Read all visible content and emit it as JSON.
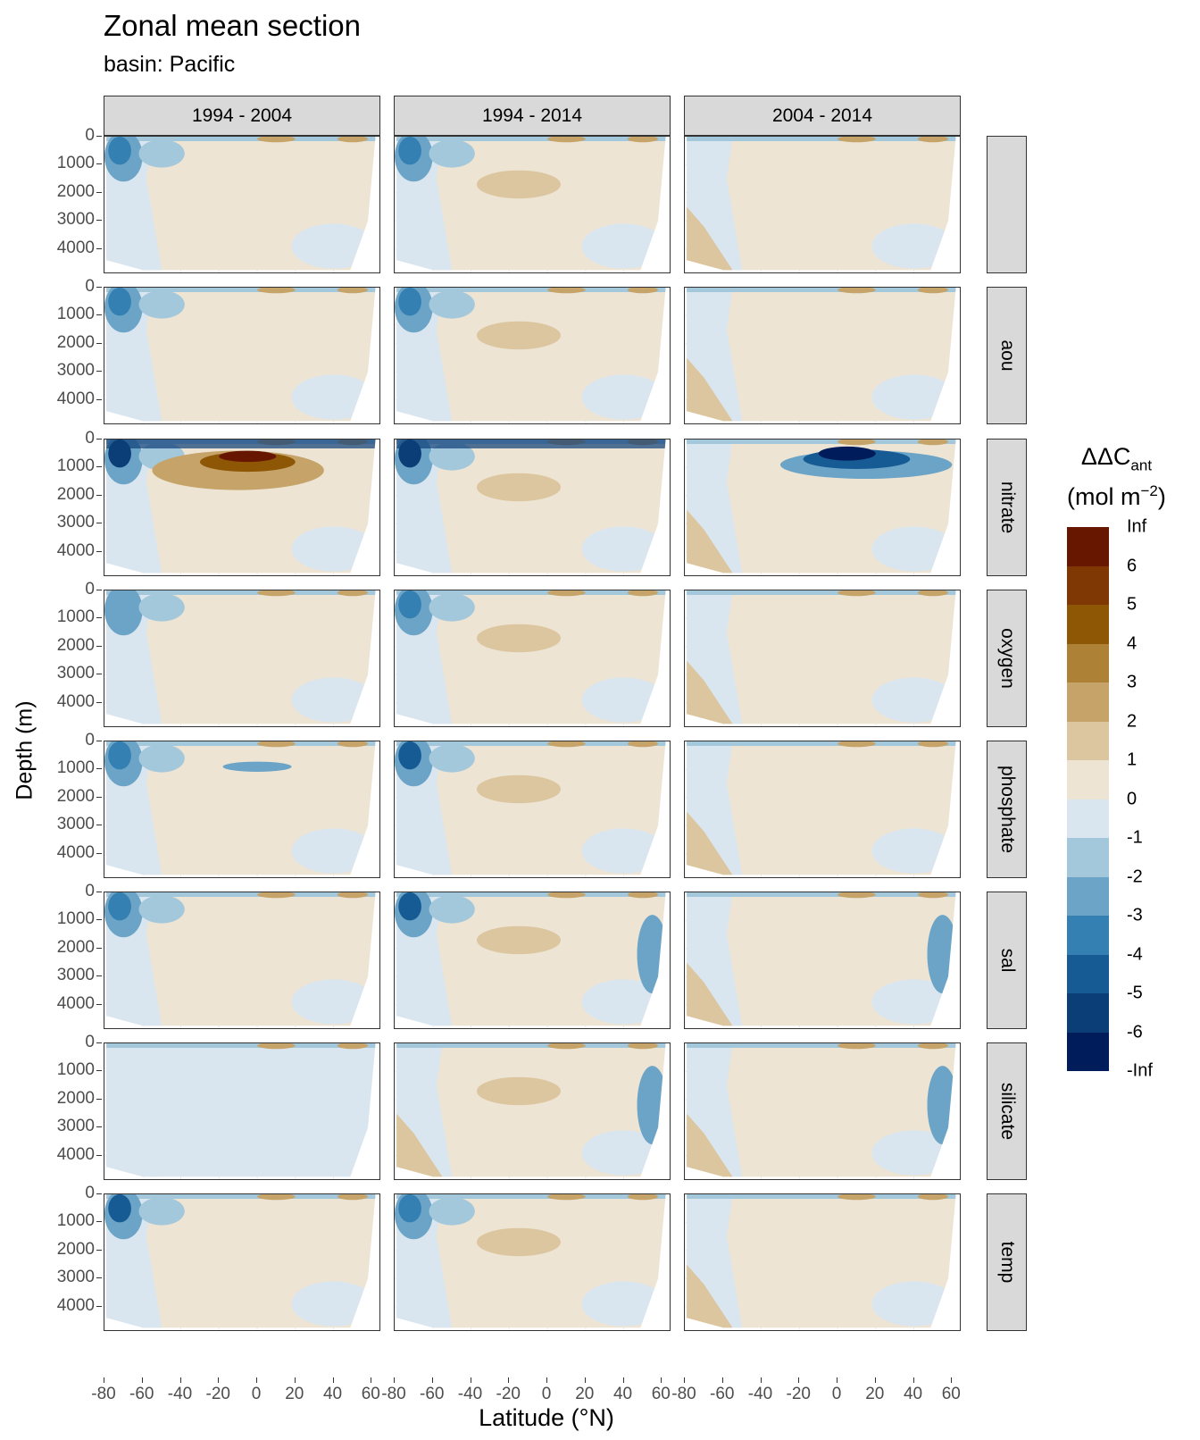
{
  "title": "Zonal mean section",
  "subtitle": "basin: Pacific",
  "chart_data": {
    "type": "heatmap",
    "title": "Zonal mean section",
    "subtitle": "basin: Pacific",
    "xlabel": "Latitude (°N)",
    "ylabel": "Depth (m)",
    "x_ticks": [
      -80,
      -60,
      -40,
      -20,
      0,
      20,
      40,
      60
    ],
    "y_ticks": [
      0,
      1000,
      2000,
      3000,
      4000
    ],
    "xlim": [
      -80,
      65
    ],
    "ylim": [
      4900,
      0
    ],
    "y_reversed": true,
    "columns": [
      "1994 - 2004",
      "1994 - 2014",
      "2004 - 2014"
    ],
    "rows": [
      "",
      "aou",
      "nitrate",
      "oxygen",
      "phosphate",
      "sal",
      "silicate",
      "temp"
    ],
    "legend": {
      "title_main": "ΔΔC",
      "title_sub": "ant",
      "title_units": "(mol m",
      "title_exp": "−2",
      "title_close": ")",
      "labels": [
        "Inf",
        "6",
        "5",
        "4",
        "3",
        "2",
        "1",
        "0",
        "-1",
        "-2",
        "-3",
        "-4",
        "-5",
        "-6",
        "-Inf"
      ],
      "colors": [
        "#671700",
        "#7f3804",
        "#8e5705",
        "#ad8237",
        "#c6a469",
        "#dcc69f",
        "#ede4d4",
        "#dae6ef",
        "#a3c7db",
        "#6ba4c6",
        "#3580b2",
        "#175b94",
        "#0b3d77",
        "#001c5a"
      ]
    },
    "panels": [
      [
        {
          "pos_max": 2,
          "neg_min": -4,
          "features": [
            "blue_high_south"
          ]
        },
        {
          "pos_max": 3,
          "neg_min": -4,
          "features": [
            "tan_mid",
            "blue_high_south"
          ]
        },
        {
          "pos_max": 3,
          "neg_min": -2,
          "features": [
            "tan_deep_south"
          ]
        }
      ],
      [
        {
          "pos_max": 2,
          "neg_min": -4,
          "features": [
            "blue_high_south"
          ]
        },
        {
          "pos_max": 3,
          "neg_min": -4,
          "features": [
            "tan_mid",
            "blue_high_south"
          ]
        },
        {
          "pos_max": 3,
          "neg_min": -2,
          "features": [
            "tan_deep_south"
          ]
        }
      ],
      [
        {
          "pos_max": 6,
          "neg_min": -6,
          "features": [
            "brown_core",
            "blue_surface"
          ]
        },
        {
          "pos_max": 4,
          "neg_min": -6,
          "features": [
            "tan_mid",
            "blue_surface"
          ]
        },
        {
          "pos_max": 3,
          "neg_min": -6,
          "features": [
            "blue_core",
            "tan_deep_south"
          ]
        }
      ],
      [
        {
          "pos_max": 3,
          "neg_min": -3,
          "features": [
            "blue_high_south"
          ]
        },
        {
          "pos_max": 3,
          "neg_min": -4,
          "features": [
            "tan_mid",
            "blue_high_south"
          ]
        },
        {
          "pos_max": 3,
          "neg_min": -2,
          "features": [
            "tan_deep_south"
          ]
        }
      ],
      [
        {
          "pos_max": 3,
          "neg_min": -4,
          "features": [
            "blue_high_south",
            "blue_band"
          ]
        },
        {
          "pos_max": 3,
          "neg_min": -5,
          "features": [
            "tan_mid",
            "blue_high_south"
          ]
        },
        {
          "pos_max": 3,
          "neg_min": -4,
          "features": [
            "tan_deep_south"
          ]
        }
      ],
      [
        {
          "pos_max": 2,
          "neg_min": -4,
          "features": [
            "blue_high_south"
          ]
        },
        {
          "pos_max": 3,
          "neg_min": -5,
          "features": [
            "tan_mid",
            "blue_high_south",
            "blue_north"
          ]
        },
        {
          "pos_max": 3,
          "neg_min": -4,
          "features": [
            "tan_deep_south",
            "blue_north"
          ]
        }
      ],
      [
        {
          "pos_max": 2,
          "neg_min": -3,
          "features": [
            "light_blue_wide"
          ]
        },
        {
          "pos_max": 3,
          "neg_min": -4,
          "features": [
            "tan_mid",
            "tan_deep_south",
            "blue_north"
          ]
        },
        {
          "pos_max": 4,
          "neg_min": -3,
          "features": [
            "tan_deep_south",
            "blue_north"
          ]
        }
      ],
      [
        {
          "pos_max": 3,
          "neg_min": -5,
          "features": [
            "blue_high_south"
          ]
        },
        {
          "pos_max": 3,
          "neg_min": -4,
          "features": [
            "tan_mid",
            "blue_high_south"
          ]
        },
        {
          "pos_max": 3,
          "neg_min": -2,
          "features": [
            "tan_deep_south"
          ]
        }
      ]
    ]
  }
}
